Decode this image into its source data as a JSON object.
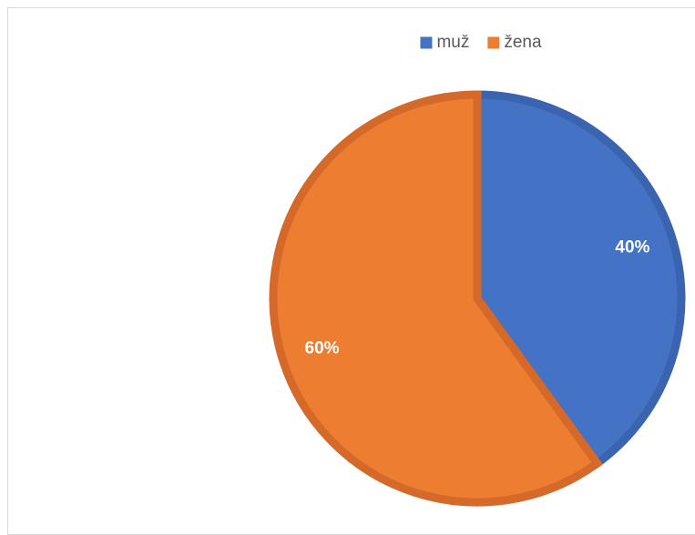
{
  "chart_data": {
    "type": "pie",
    "title": "",
    "categories": [
      "muž",
      "žena"
    ],
    "values": [
      40,
      60
    ],
    "data_labels": [
      "40%",
      "60%"
    ],
    "colors": [
      "#4472C4",
      "#ED7D31"
    ],
    "border_colors": [
      "#3A64B0",
      "#D4692A"
    ],
    "legend_position": "top",
    "start_angle": "12 o'clock",
    "direction": "clockwise"
  }
}
